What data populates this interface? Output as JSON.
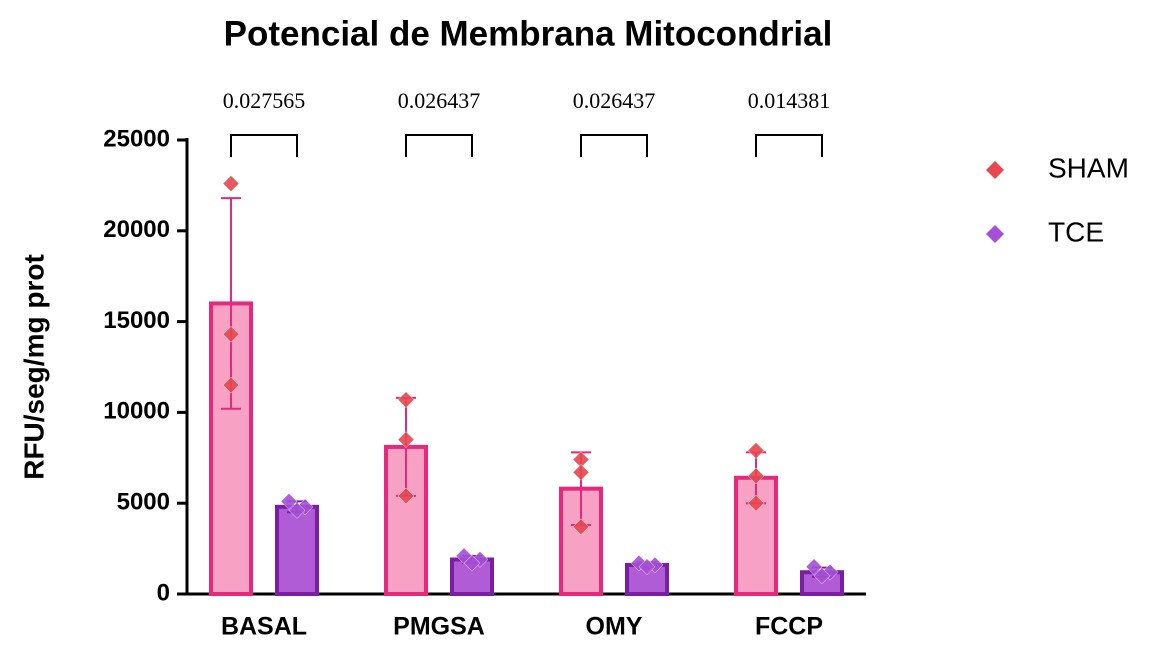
{
  "chart_data": {
    "type": "bar",
    "title": "Potencial de Membrana Mitocondrial",
    "y_label": "RFU/seg/mg prot",
    "categories": [
      "BASAL",
      "PMGSA",
      "OMY",
      "FCCP"
    ],
    "ylim": [
      0,
      25000
    ],
    "yticks": [
      0,
      5000,
      10000,
      15000,
      20000,
      25000
    ],
    "legend": "right",
    "series": [
      {
        "name": "SHAM",
        "color": "#e8287c",
        "fill": "#f7a1c4",
        "marker_color": "#e8474e",
        "values": [
          16000,
          8100,
          5800,
          6400
        ],
        "errors": [
          5800,
          2700,
          2000,
          1400
        ],
        "points": [
          [
            22600,
            14300,
            11500
          ],
          [
            10700,
            8500,
            5400
          ],
          [
            7400,
            6700,
            3700
          ],
          [
            7900,
            6500,
            5000
          ]
        ]
      },
      {
        "name": "TCE",
        "color": "#7b1fa2",
        "fill": "#b05cd6",
        "marker_color": "#a64fd8",
        "values": [
          4800,
          1900,
          1600,
          1200
        ],
        "errors": [
          300,
          200,
          150,
          250
        ],
        "points": [
          [
            5100,
            4800,
            4600
          ],
          [
            2100,
            1900,
            1700
          ],
          [
            1700,
            1600,
            1500
          ],
          [
            1500,
            1200,
            1000
          ]
        ]
      }
    ],
    "p_values": [
      0.027565,
      0.026437,
      0.026437,
      0.014381
    ]
  }
}
